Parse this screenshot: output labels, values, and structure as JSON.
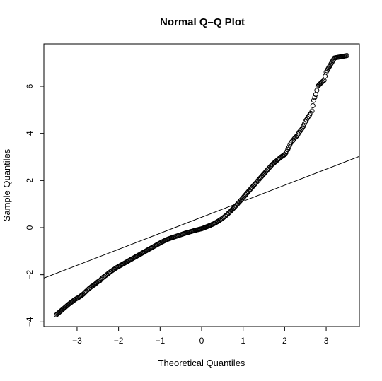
{
  "chart_data": {
    "type": "scatter",
    "title": "Normal Q–Q Plot",
    "xlabel": "Theoretical Quantiles",
    "ylabel": "Sample Quantiles",
    "xlim": [
      -3.8,
      3.8
    ],
    "ylim": [
      -4.2,
      7.8
    ],
    "x_ticks": [
      -3,
      -2,
      -1,
      0,
      1,
      2,
      3
    ],
    "x_tick_labels": [
      "−3",
      "−2",
      "−1",
      "0",
      "1",
      "2",
      "3"
    ],
    "y_ticks": [
      -4,
      -2,
      0,
      2,
      4,
      6
    ],
    "y_tick_labels": [
      "−4",
      "−2",
      "0",
      "2",
      "4",
      "6"
    ],
    "grid": false,
    "marker": "open-circle",
    "reference_line": {
      "slope": 0.68,
      "intercept": 0.44
    },
    "points": [
      [
        -3.5,
        -3.7
      ],
      [
        -3.2,
        -3.25
      ],
      [
        -3.05,
        -3.05
      ],
      [
        -2.95,
        -2.95
      ],
      [
        -2.85,
        -2.82
      ],
      [
        -2.78,
        -2.7
      ],
      [
        -2.72,
        -2.6
      ],
      [
        -2.65,
        -2.5
      ],
      [
        -2.58,
        -2.42
      ],
      [
        -2.5,
        -2.3
      ],
      [
        -2.45,
        -2.25
      ],
      [
        -2.4,
        -2.15
      ],
      [
        -2.35,
        -2.08
      ],
      [
        -2.3,
        -2.02
      ],
      [
        -2.25,
        -1.95
      ],
      [
        -2.2,
        -1.88
      ],
      [
        -2.15,
        -1.82
      ],
      [
        -2.1,
        -1.76
      ],
      [
        -2.05,
        -1.7
      ],
      [
        -2.0,
        -1.65
      ],
      [
        -1.9,
        -1.55
      ],
      [
        -1.8,
        -1.45
      ],
      [
        -1.7,
        -1.35
      ],
      [
        -1.6,
        -1.25
      ],
      [
        -1.5,
        -1.15
      ],
      [
        -1.4,
        -1.05
      ],
      [
        -1.3,
        -0.95
      ],
      [
        -1.2,
        -0.85
      ],
      [
        -1.1,
        -0.75
      ],
      [
        -1.0,
        -0.65
      ],
      [
        -0.9,
        -0.56
      ],
      [
        -0.8,
        -0.48
      ],
      [
        -0.7,
        -0.42
      ],
      [
        -0.6,
        -0.36
      ],
      [
        -0.5,
        -0.3
      ],
      [
        -0.4,
        -0.24
      ],
      [
        -0.3,
        -0.19
      ],
      [
        -0.2,
        -0.14
      ],
      [
        -0.1,
        -0.09
      ],
      [
        0.0,
        -0.05
      ],
      [
        0.1,
        0.02
      ],
      [
        0.2,
        0.09
      ],
      [
        0.3,
        0.17
      ],
      [
        0.4,
        0.27
      ],
      [
        0.5,
        0.39
      ],
      [
        0.6,
        0.53
      ],
      [
        0.7,
        0.7
      ],
      [
        0.8,
        0.88
      ],
      [
        0.9,
        1.07
      ],
      [
        1.0,
        1.27
      ],
      [
        1.1,
        1.48
      ],
      [
        1.2,
        1.68
      ],
      [
        1.3,
        1.88
      ],
      [
        1.4,
        2.08
      ],
      [
        1.5,
        2.28
      ],
      [
        1.6,
        2.48
      ],
      [
        1.7,
        2.68
      ],
      [
        1.8,
        2.83
      ],
      [
        1.9,
        2.98
      ],
      [
        2.0,
        3.1
      ],
      [
        2.05,
        3.22
      ],
      [
        2.1,
        3.4
      ],
      [
        2.15,
        3.6
      ],
      [
        2.2,
        3.7
      ],
      [
        2.25,
        3.82
      ],
      [
        2.3,
        3.9
      ],
      [
        2.35,
        4.05
      ],
      [
        2.4,
        4.15
      ],
      [
        2.45,
        4.3
      ],
      [
        2.5,
        4.5
      ],
      [
        2.55,
        4.65
      ],
      [
        2.6,
        4.78
      ],
      [
        2.63,
        4.85
      ],
      [
        2.66,
        4.95
      ],
      [
        2.7,
        5.4
      ],
      [
        2.75,
        5.65
      ],
      [
        2.8,
        6.0
      ],
      [
        2.88,
        6.15
      ],
      [
        2.95,
        6.25
      ],
      [
        3.0,
        6.6
      ],
      [
        3.2,
        7.2
      ],
      [
        3.5,
        7.3
      ]
    ]
  }
}
